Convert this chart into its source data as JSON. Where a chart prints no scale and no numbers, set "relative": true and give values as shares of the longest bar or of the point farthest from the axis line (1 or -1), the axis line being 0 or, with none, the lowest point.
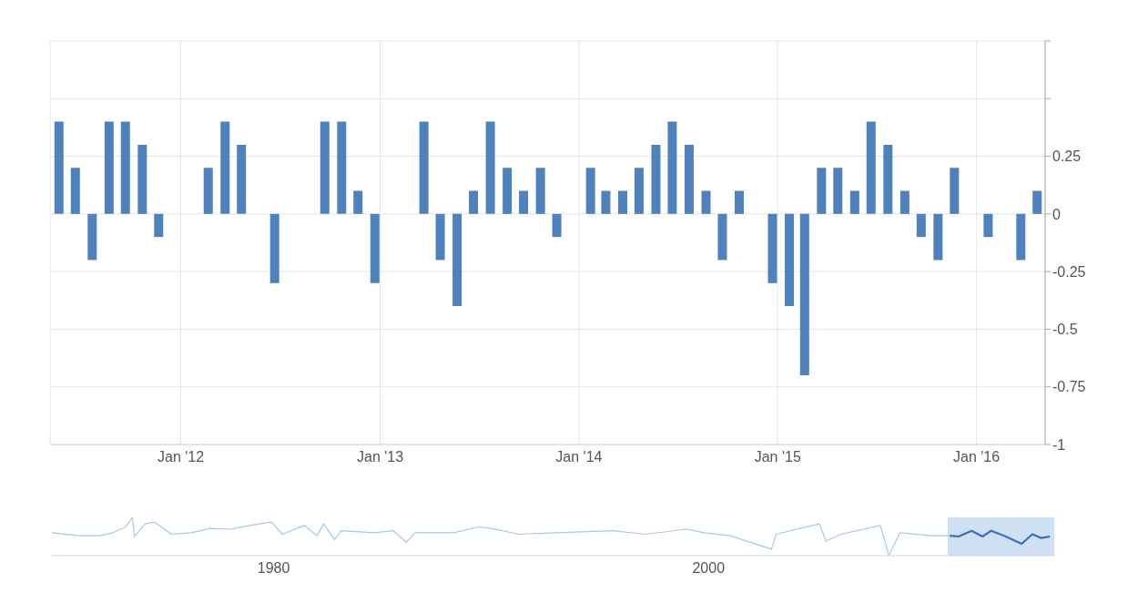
{
  "chart_data": [
    {
      "type": "bar",
      "x": [
        "2011-06",
        "2011-07",
        "2011-08",
        "2011-09",
        "2011-10",
        "2011-11",
        "2011-12",
        "2012-01",
        "2012-02",
        "2012-03",
        "2012-04",
        "2012-05",
        "2012-06",
        "2012-07",
        "2012-08",
        "2012-09",
        "2012-10",
        "2012-11",
        "2012-12",
        "2013-01",
        "2013-02",
        "2013-03",
        "2013-04",
        "2013-05",
        "2013-06",
        "2013-07",
        "2013-08",
        "2013-09",
        "2013-10",
        "2013-11",
        "2013-12",
        "2014-01",
        "2014-02",
        "2014-03",
        "2014-04",
        "2014-05",
        "2014-06",
        "2014-07",
        "2014-08",
        "2014-09",
        "2014-10",
        "2014-11",
        "2014-12",
        "2015-01",
        "2015-02",
        "2015-03",
        "2015-04",
        "2015-05",
        "2015-06",
        "2015-07",
        "2015-08",
        "2015-09",
        "2015-10",
        "2015-11",
        "2015-12",
        "2016-01",
        "2016-02",
        "2016-03",
        "2016-04",
        "2016-05"
      ],
      "series": [
        {
          "color": "#4f81bd",
          "values": [
            0.4,
            0.2,
            -0.2,
            0.4,
            0.4,
            0.3,
            -0.1,
            0,
            0,
            0.2,
            0.4,
            0.3,
            0,
            -0.3,
            0,
            0,
            0.4,
            0.4,
            0.1,
            -0.3,
            0,
            0,
            0.4,
            -0.2,
            -0.4,
            0.1,
            0.4,
            0.2,
            0.1,
            0.2,
            -0.1,
            0,
            0.2,
            0.1,
            0.1,
            0.2,
            0.3,
            0.4,
            0.3,
            0.1,
            -0.2,
            0.1,
            0,
            -0.3,
            -0.4,
            -0.7,
            0.2,
            0.2,
            0.1,
            0.4,
            0.3,
            0.1,
            -0.1,
            -0.2,
            0.2,
            0,
            -0.1,
            0,
            -0.2,
            0.1
          ]
        }
      ],
      "xlim": [
        "2011-05-15",
        "2016-05-15"
      ],
      "xticks": [
        {
          "value": "2012-01-10",
          "label": "Jan '12"
        },
        {
          "value": "2013-01-10",
          "label": "Jan '13"
        },
        {
          "value": "2014-01-10",
          "label": "Jan '14"
        },
        {
          "value": "2015-01-10",
          "label": "Jan '15"
        },
        {
          "value": "2016-01-10",
          "label": "Jan '16"
        }
      ],
      "ylim": [
        -1,
        0.75
      ],
      "yticks": [
        {
          "value": 0.75,
          "label": null
        },
        {
          "value": 0.5,
          "label": null
        },
        0.25,
        0,
        -0.25,
        -0.5,
        -0.75,
        -1
      ],
      "grid": true
    },
    {
      "type": "line",
      "relative": true,
      "series": [
        {
          "color": "#a9c8e8",
          "x": [
            1969.8,
            1971.1,
            1972.0,
            1972.6,
            1973.2,
            1973.5,
            1973.6,
            1974.1,
            1974.5,
            1975.3,
            1976.2,
            1977.1,
            1978.0,
            1978.9,
            1979.9,
            1980.4,
            1981.4,
            1982.0,
            1982.3,
            1982.8,
            1983.1,
            1984.6,
            1985.5,
            1986.1,
            1986.5,
            1988.3,
            1989.4,
            1990.0,
            1991.3,
            1993.0,
            1995.6,
            1997.1,
            1999.0,
            1999.8,
            2001.0,
            2002.9,
            2003.1,
            2005.1,
            2005.4,
            2006.1,
            2007.9,
            2008.3,
            2008.8,
            2010.3,
            2011.1
          ],
          "values": [
            0.6,
            0.52,
            0.52,
            0.6,
            0.75,
            1,
            0.5,
            0.83,
            0.88,
            0.56,
            0.6,
            0.71,
            0.69,
            0.79,
            0.88,
            0.56,
            0.79,
            0.52,
            0.83,
            0.42,
            0.65,
            0.6,
            0.65,
            0.35,
            0.6,
            0.6,
            0.75,
            0.71,
            0.56,
            0.6,
            0.65,
            0.56,
            0.69,
            0.6,
            0.52,
            0.17,
            0.56,
            0.83,
            0.38,
            0.56,
            0.79,
            0,
            0.6,
            0.52,
            0.52
          ]
        },
        {
          "color": "#3b6fb6",
          "x": [
            2011.1,
            2011.5,
            2012.1,
            2012.6,
            2013.0,
            2013.6,
            2014.4,
            2014.9,
            2015.3,
            2015.7
          ],
          "values": [
            0.52,
            0.5,
            0.65,
            0.5,
            0.65,
            0.52,
            0.31,
            0.56,
            0.46,
            0.5
          ]
        }
      ],
      "xlim": [
        1969.8,
        2015.9
      ],
      "xticks": [
        1980,
        2000
      ],
      "bands": [
        {
          "axis": "x",
          "from": 2011.0,
          "to": 2015.9,
          "color": "#cfe0f2"
        }
      ]
    }
  ]
}
